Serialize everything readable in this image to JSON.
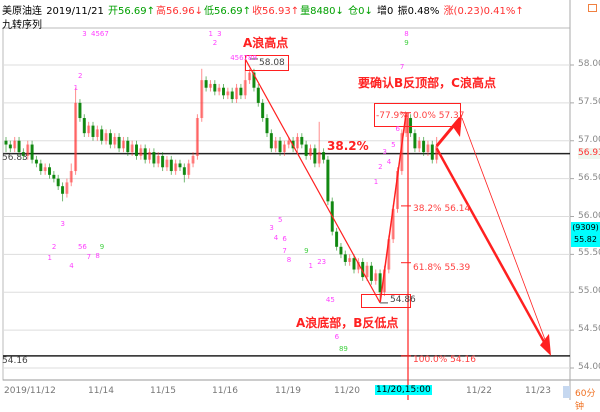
{
  "header": {
    "symbol": "美原油连",
    "date": "2019/11/21",
    "open": "开56.69↑",
    "high": "高56.96↓",
    "low": "低56.69↑",
    "close": "收56.93↑",
    "volume": "量8480↓",
    "position": "仓0↓",
    "increase": "增0",
    "amplitude": "振0.48%",
    "change": "涨(0.23)0.41%↑",
    "indicator": "九转序列"
  },
  "colors": {
    "up": "#ff3030",
    "down": "#008000",
    "annotation": "#ff2020",
    "td_marks": "#ff40ff",
    "cursor_label": "#00ffff"
  },
  "x_axis": {
    "labels": [
      "2019/11/12",
      "11/14",
      "11/15",
      "11/16",
      "11/19",
      "11/20",
      "11/22",
      "11/23"
    ],
    "cursor_label": "11/20,15:00",
    "period": "60分钟"
  },
  "y_axis": {
    "labels": [
      "58.00",
      "57.50",
      "57.00",
      "56.50",
      "56.00",
      "55.50",
      "55.00",
      "54.50",
      "54.00"
    ],
    "last_price": "56.93",
    "cursor_count": "(9309)",
    "cursor_price": "55.82",
    "left_line_labels": [
      "56.83",
      "54.16"
    ]
  },
  "annotations": {
    "a_high": "A浪高点",
    "a_high_price": "58.08",
    "confirm": "要确认B反顶部，C浪高点",
    "retrace": "38.2%",
    "a_low": "A浪底部，B反低点",
    "a_low_price": "54.86"
  },
  "fibonacci": [
    {
      "label": "-77.9%",
      "price": 57.37
    },
    {
      "label": "0.0% 57.37",
      "price": 57.37
    },
    {
      "label": "38.2% 56.14",
      "price": 56.14
    },
    {
      "label": "61.8% 55.39",
      "price": 55.39
    },
    {
      "label": "100.0% 54.16",
      "price": 54.16
    }
  ],
  "chart_data": {
    "type": "candlestick",
    "ylim": [
      54.0,
      58.0
    ],
    "horizontal_lines": [
      56.83,
      54.16
    ],
    "candles": [
      [
        57.0,
        57.05,
        56.85,
        56.95
      ],
      [
        56.95,
        57.0,
        56.85,
        56.9
      ],
      [
        56.9,
        57.05,
        56.85,
        57.0
      ],
      [
        57.0,
        57.05,
        56.8,
        56.85
      ],
      [
        56.85,
        56.9,
        56.75,
        56.8
      ],
      [
        56.8,
        57.0,
        56.75,
        56.95
      ],
      [
        56.95,
        57.0,
        56.7,
        56.75
      ],
      [
        56.75,
        56.8,
        56.65,
        56.7
      ],
      [
        56.7,
        56.75,
        56.55,
        56.6
      ],
      [
        56.6,
        56.7,
        56.55,
        56.65
      ],
      [
        56.65,
        56.7,
        56.5,
        56.55
      ],
      [
        56.55,
        56.6,
        56.45,
        56.5
      ],
      [
        56.5,
        56.55,
        56.35,
        56.4
      ],
      [
        56.4,
        56.45,
        56.2,
        56.3
      ],
      [
        56.3,
        56.5,
        56.25,
        56.45
      ],
      [
        56.45,
        56.7,
        56.4,
        56.6
      ],
      [
        56.6,
        57.7,
        56.55,
        57.5
      ],
      [
        57.5,
        57.55,
        57.25,
        57.3
      ],
      [
        57.3,
        57.35,
        57.05,
        57.1
      ],
      [
        57.1,
        57.25,
        57.05,
        57.2
      ],
      [
        57.2,
        57.25,
        57.0,
        57.05
      ],
      [
        57.05,
        57.2,
        57.0,
        57.15
      ],
      [
        57.15,
        57.2,
        56.95,
        57.0
      ],
      [
        57.0,
        57.15,
        56.95,
        57.1
      ],
      [
        57.1,
        57.15,
        56.9,
        56.95
      ],
      [
        56.95,
        57.1,
        56.9,
        57.05
      ],
      [
        57.05,
        57.1,
        56.85,
        56.9
      ],
      [
        56.9,
        57.05,
        56.85,
        57.0
      ],
      [
        57.0,
        57.05,
        56.8,
        56.85
      ],
      [
        56.85,
        57.0,
        56.8,
        56.95
      ],
      [
        56.95,
        57.0,
        56.75,
        56.8
      ],
      [
        56.8,
        56.95,
        56.75,
        56.9
      ],
      [
        56.9,
        56.95,
        56.7,
        56.75
      ],
      [
        56.75,
        56.9,
        56.7,
        56.85
      ],
      [
        56.85,
        56.9,
        56.65,
        56.7
      ],
      [
        56.7,
        56.85,
        56.65,
        56.8
      ],
      [
        56.8,
        56.85,
        56.6,
        56.65
      ],
      [
        56.65,
        56.8,
        56.6,
        56.75
      ],
      [
        56.75,
        56.8,
        56.55,
        56.6
      ],
      [
        56.6,
        56.75,
        56.55,
        56.7
      ],
      [
        56.7,
        56.75,
        56.6,
        56.65
      ],
      [
        56.65,
        56.7,
        56.45,
        56.55
      ],
      [
        56.55,
        56.75,
        56.5,
        56.7
      ],
      [
        56.7,
        56.85,
        56.65,
        56.8
      ],
      [
        56.8,
        57.35,
        56.75,
        57.3
      ],
      [
        57.3,
        57.95,
        57.25,
        57.8
      ],
      [
        57.8,
        57.85,
        57.65,
        57.7
      ],
      [
        57.7,
        57.8,
        57.65,
        57.75
      ],
      [
        57.75,
        57.8,
        57.6,
        57.65
      ],
      [
        57.65,
        57.75,
        57.6,
        57.7
      ],
      [
        57.7,
        57.75,
        57.55,
        57.6
      ],
      [
        57.6,
        57.7,
        57.55,
        57.65
      ],
      [
        57.65,
        57.7,
        57.5,
        57.55
      ],
      [
        57.55,
        57.75,
        57.5,
        57.7
      ],
      [
        57.7,
        57.75,
        57.55,
        57.6
      ],
      [
        57.6,
        58.08,
        57.55,
        57.8
      ],
      [
        57.8,
        57.95,
        57.75,
        57.9
      ],
      [
        57.9,
        57.95,
        57.65,
        57.7
      ],
      [
        57.7,
        57.75,
        57.45,
        57.5
      ],
      [
        57.5,
        57.55,
        57.25,
        57.3
      ],
      [
        57.3,
        57.35,
        57.05,
        57.1
      ],
      [
        57.1,
        57.15,
        56.85,
        56.9
      ],
      [
        56.9,
        57.05,
        56.85,
        57.0
      ],
      [
        57.0,
        57.05,
        56.8,
        56.85
      ],
      [
        56.85,
        57.0,
        56.8,
        56.95
      ],
      [
        56.95,
        57.05,
        56.9,
        57.0
      ],
      [
        57.0,
        57.05,
        56.85,
        56.9
      ],
      [
        56.9,
        57.1,
        56.85,
        57.05
      ],
      [
        57.05,
        57.1,
        56.9,
        56.95
      ],
      [
        56.95,
        57.0,
        56.75,
        56.8
      ],
      [
        56.8,
        56.95,
        56.75,
        56.9
      ],
      [
        56.9,
        56.95,
        56.65,
        56.7
      ],
      [
        56.7,
        57.25,
        56.65,
        56.85
      ],
      [
        56.85,
        56.9,
        56.7,
        56.75
      ],
      [
        56.75,
        56.8,
        56.15,
        56.2
      ],
      [
        56.2,
        56.25,
        55.75,
        55.8
      ],
      [
        55.8,
        55.85,
        55.55,
        55.6
      ],
      [
        55.6,
        55.65,
        55.45,
        55.5
      ],
      [
        55.5,
        55.55,
        55.35,
        55.4
      ],
      [
        55.4,
        55.5,
        55.35,
        55.45
      ],
      [
        55.45,
        55.5,
        55.25,
        55.3
      ],
      [
        55.3,
        55.45,
        55.25,
        55.4
      ],
      [
        55.4,
        55.45,
        55.15,
        55.2
      ],
      [
        55.2,
        55.4,
        55.15,
        55.35
      ],
      [
        55.35,
        55.4,
        55.1,
        55.15
      ],
      [
        55.15,
        55.3,
        55.1,
        55.25
      ],
      [
        55.25,
        55.3,
        54.86,
        55.0
      ],
      [
        55.0,
        55.35,
        54.95,
        55.3
      ],
      [
        55.3,
        55.75,
        55.25,
        55.7
      ],
      [
        55.7,
        56.15,
        55.65,
        56.1
      ],
      [
        56.1,
        56.65,
        56.05,
        56.6
      ],
      [
        56.6,
        57.15,
        56.55,
        57.1
      ],
      [
        57.1,
        57.37,
        57.05,
        57.3
      ],
      [
        57.3,
        57.35,
        57.05,
        57.1
      ],
      [
        57.1,
        57.15,
        56.85,
        56.9
      ],
      [
        56.9,
        57.05,
        56.85,
        57.0
      ],
      [
        57.0,
        57.05,
        56.8,
        56.85
      ],
      [
        56.85,
        57.0,
        56.8,
        56.95
      ],
      [
        56.95,
        57.0,
        56.7,
        56.75
      ],
      [
        56.75,
        57.05,
        56.7,
        56.93
      ]
    ],
    "td_marks": [
      {
        "label": "1",
        "candle": 10,
        "price": 55.45
      },
      {
        "label": "2",
        "candle": 11,
        "price": 55.6
      },
      {
        "label": "3",
        "candle": 13,
        "price": 55.9
      },
      {
        "label": "4",
        "candle": 15,
        "price": 55.35
      },
      {
        "label": "56",
        "candle": 17,
        "price": 55.6
      },
      {
        "label": "7",
        "candle": 19,
        "price": 55.5
      },
      {
        "label": "8",
        "candle": 21,
        "price": 55.48
      },
      {
        "label": "9",
        "candle": 22,
        "price": 55.48
      },
      {
        "label": "1",
        "candle": 16,
        "price": 57.7
      },
      {
        "label": "2",
        "candle": 17,
        "price": 57.85
      },
      {
        "label": "3",
        "candle": 18,
        "price": 58.55
      },
      {
        "label": "4567",
        "candle": 20,
        "price": 58.75
      },
      {
        "label": "1",
        "candle": 47,
        "price": 58.45
      },
      {
        "label": "2",
        "candle": 48,
        "price": 58.55
      },
      {
        "label": "3",
        "candle": 49,
        "price": 58.65
      },
      {
        "label": "456789",
        "candle": 52,
        "price": 58.75
      },
      {
        "label": "3",
        "candle": 61,
        "price": 55.85
      },
      {
        "label": "4",
        "candle": 62,
        "price": 55.75
      },
      {
        "label": "5",
        "candle": 63,
        "price": 55.95
      },
      {
        "label": "6",
        "candle": 64,
        "price": 55.7
      },
      {
        "label": "7",
        "candle": 64,
        "price": 55.55
      },
      {
        "label": "8",
        "candle": 65,
        "price": 55.5
      },
      {
        "label": "9",
        "candle": 69,
        "price": 55.55
      },
      {
        "label": "1",
        "candle": 70,
        "price": 55.35
      },
      {
        "label": "23",
        "candle": 72,
        "price": 55.4
      },
      {
        "label": "45",
        "candle": 74,
        "price": 54.9
      },
      {
        "label": "6",
        "candle": 76,
        "price": 54.68
      },
      {
        "label": "89",
        "candle": 77,
        "price": 54.45
      },
      {
        "label": "1",
        "candle": 85,
        "price": 56.45
      },
      {
        "label": "2",
        "candle": 86,
        "price": 56.65
      },
      {
        "label": "3",
        "candle": 87,
        "price": 56.85
      },
      {
        "label": "4",
        "candle": 88,
        "price": 56.8
      },
      {
        "label": "5",
        "candle": 89,
        "price": 56.95
      },
      {
        "label": "6",
        "candle": 90,
        "price": 57.15
      },
      {
        "label": "7",
        "candle": 91,
        "price": 57.9
      },
      {
        "label": "8",
        "candle": 92,
        "price": 58.65
      },
      {
        "label": "9",
        "candle": 92,
        "price": 58.85
      }
    ]
  }
}
